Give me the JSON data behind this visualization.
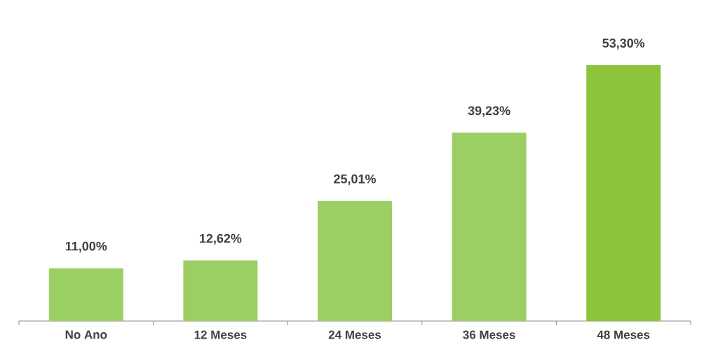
{
  "chart_data": {
    "type": "bar",
    "categories": [
      "No Ano",
      "12 Meses",
      "24 Meses",
      "36 Meses",
      "48 Meses"
    ],
    "values": [
      11.0,
      12.62,
      25.01,
      39.23,
      53.3
    ],
    "colors": [
      "#9ccf63",
      "#9ccf63",
      "#9ccf63",
      "#9ccf63",
      "#8cc43c"
    ],
    "value_labels": [
      "11,00%",
      "12,62%",
      "25,01%",
      "39,23%",
      "53,30%"
    ],
    "tick_labels": "x"
  }
}
